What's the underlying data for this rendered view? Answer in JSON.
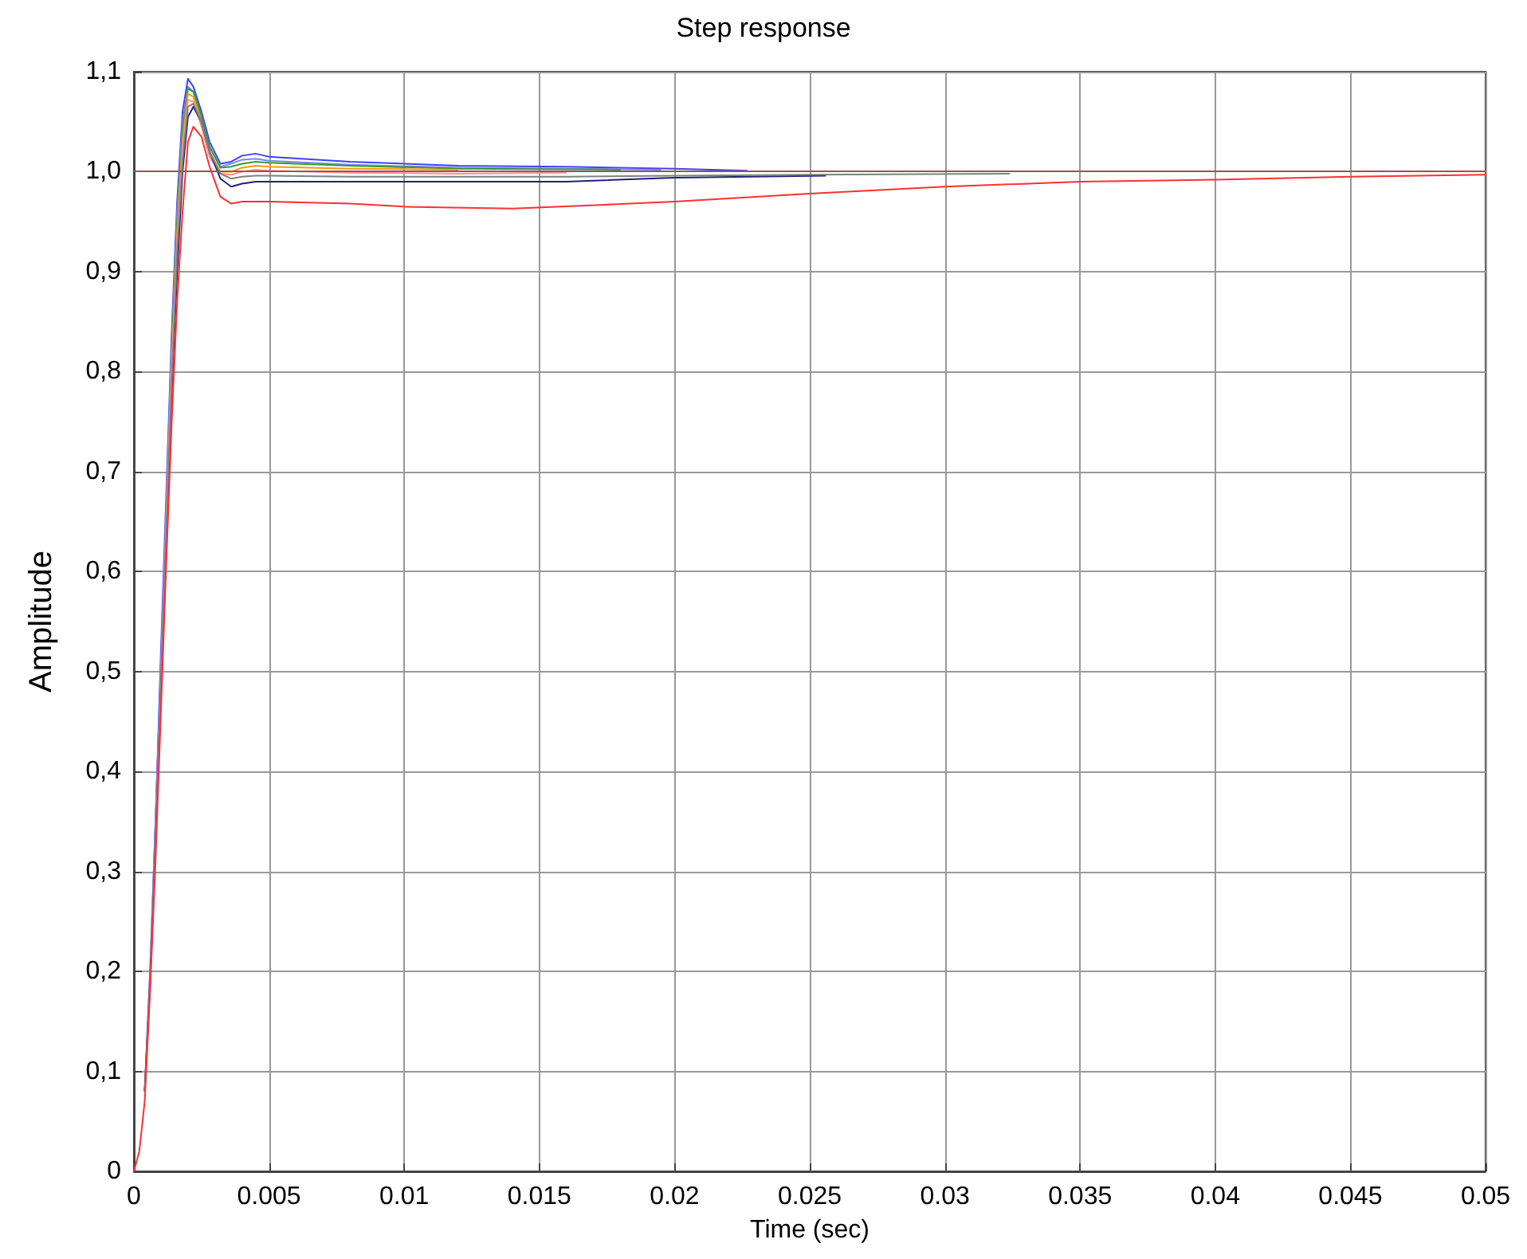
{
  "chart_data": {
    "type": "line",
    "title": "Step response",
    "xlabel": "Time (sec)",
    "ylabel": "Amplitude",
    "grid": true,
    "marker": "none",
    "line_style": "solid",
    "xlim": [
      0,
      0.05
    ],
    "xticks": [
      0,
      0.005,
      0.01,
      0.015,
      0.02,
      0.025,
      0.03,
      0.035,
      0.04,
      0.045,
      0.05
    ],
    "ylim": [
      0,
      1.1
    ],
    "yticks": [
      0,
      {
        "value": 0.1,
        "label": "0,1"
      },
      {
        "value": 0.2,
        "label": "0,2"
      },
      {
        "value": 0.3,
        "label": "0,3"
      },
      {
        "value": 0.4,
        "label": "0,4"
      },
      {
        "value": 0.5,
        "label": "0,5"
      },
      {
        "value": 0.6,
        "label": "0,6"
      },
      {
        "value": 0.7,
        "label": "0,7"
      },
      {
        "value": 0.8,
        "label": "0,8"
      },
      {
        "value": 0.9,
        "label": "0,9"
      },
      {
        "value": 1,
        "label": "1,0"
      },
      {
        "value": 1.1,
        "label": "1,1"
      }
    ],
    "ref_lines": [
      {
        "axis": "y",
        "value": 1,
        "color": "#a05050"
      }
    ],
    "series": [
      {
        "color": "#4040ff",
        "x": [
          0.0004,
          0.0006,
          0.0008,
          0.001,
          0.0012,
          0.0014,
          0.0016,
          0.0018,
          0.002,
          0.0022,
          0.0025,
          0.0028,
          0.0032,
          0.0036,
          0.004,
          0.0045,
          0.005,
          0.008,
          0.012,
          0.016,
          0.02,
          0.0227
        ],
        "values": [
          0.08,
          0.2,
          0.35,
          0.52,
          0.68,
          0.84,
          0.97,
          1.06,
          1.093,
          1.085,
          1.06,
          1.03,
          1.008,
          1.01,
          1.016,
          1.018,
          1.015,
          1.01,
          1.006,
          1.005,
          1.003,
          1.001
        ]
      },
      {
        "color": "#8080ff",
        "x": [
          0.0004,
          0.0006,
          0.0008,
          0.001,
          0.0012,
          0.0014,
          0.0016,
          0.0018,
          0.002,
          0.0022,
          0.0025,
          0.0028,
          0.0032,
          0.0036,
          0.004,
          0.0045,
          0.005,
          0.008,
          0.012,
          0.0195
        ],
        "values": [
          0.08,
          0.2,
          0.35,
          0.51,
          0.67,
          0.83,
          0.96,
          1.05,
          1.085,
          1.08,
          1.055,
          1.025,
          1.005,
          1.008,
          1.012,
          1.013,
          1.011,
          1.007,
          1.004,
          1.002
        ]
      },
      {
        "color": "#30a030",
        "x": [
          0.0014,
          0.0016,
          0.0018,
          0.002,
          0.0022,
          0.0025,
          0.0028,
          0.0032,
          0.0036,
          0.004,
          0.0045,
          0.005,
          0.008,
          0.012,
          0.018
        ],
        "values": [
          0.82,
          0.95,
          1.04,
          1.083,
          1.08,
          1.055,
          1.025,
          1.004,
          1.005,
          1.008,
          1.01,
          1.009,
          1.006,
          1.003,
          1.002
        ]
      },
      {
        "color": "#ff9900",
        "x": [
          0.0012,
          0.0014,
          0.0016,
          0.0018,
          0.002,
          0.0022,
          0.0025,
          0.0028,
          0.0032,
          0.0036,
          0.004,
          0.0045,
          0.005,
          0.008,
          0.012
        ],
        "values": [
          0.65,
          0.81,
          0.94,
          1.03,
          1.078,
          1.075,
          1.05,
          1.02,
          1.0,
          1.0,
          1.004,
          1.006,
          1.005,
          1.003,
          1.002
        ]
      },
      {
        "color": "#ff9090",
        "x": [
          0.0004,
          0.0006,
          0.0008,
          0.001,
          0.0012,
          0.0014,
          0.0016,
          0.0018,
          0.002,
          0.0022,
          0.0025,
          0.0028,
          0.0032,
          0.0036,
          0.004,
          0.0045,
          0.005,
          0.008,
          0.012,
          0.016
        ],
        "values": [
          0.08,
          0.19,
          0.33,
          0.49,
          0.65,
          0.8,
          0.93,
          1.02,
          1.072,
          1.07,
          1.045,
          1.015,
          0.998,
          0.997,
          1.0,
          1.002,
          1.001,
          0.999,
          0.998,
          0.999
        ]
      },
      {
        "color": "#202080",
        "x": [
          0.0004,
          0.0006,
          0.0008,
          0.001,
          0.0012,
          0.0014,
          0.0016,
          0.0018,
          0.002,
          0.0022,
          0.0025,
          0.0028,
          0.0032,
          0.0036,
          0.004,
          0.0045,
          0.005,
          0.008,
          0.012,
          0.016,
          0.02,
          0.0256
        ],
        "values": [
          0.08,
          0.19,
          0.33,
          0.48,
          0.63,
          0.78,
          0.9,
          1.0,
          1.055,
          1.065,
          1.05,
          1.02,
          0.993,
          0.985,
          0.988,
          0.99,
          0.99,
          0.99,
          0.99,
          0.99,
          0.994,
          0.996
        ]
      },
      {
        "color": "#808080",
        "x": [
          0.0004,
          0.0006,
          0.0008,
          0.001,
          0.0012,
          0.0014,
          0.0016,
          0.0018,
          0.002,
          0.0022,
          0.0025,
          0.0028,
          0.0032,
          0.0036,
          0.004,
          0.0045,
          0.005,
          0.008,
          0.012,
          0.016,
          0.02,
          0.025,
          0.0324
        ],
        "values": [
          0.08,
          0.19,
          0.33,
          0.49,
          0.64,
          0.79,
          0.92,
          1.01,
          1.065,
          1.068,
          1.05,
          1.02,
          0.998,
          0.993,
          0.995,
          0.996,
          0.996,
          0.995,
          0.995,
          0.995,
          0.996,
          0.997,
          0.998
        ]
      },
      {
        "color": "#ff3030",
        "x": [
          0,
          0.0002,
          0.0004,
          0.0006,
          0.0008,
          0.001,
          0.0012,
          0.0014,
          0.0016,
          0.0018,
          0.002,
          0.0022,
          0.0025,
          0.0028,
          0.0032,
          0.0036,
          0.004,
          0.005,
          0.008,
          0.01,
          0.014,
          0.02,
          0.025,
          0.03,
          0.035,
          0.04,
          0.045,
          0.05
        ],
        "values": [
          0,
          0.02,
          0.07,
          0.18,
          0.31,
          0.46,
          0.61,
          0.75,
          0.87,
          0.96,
          1.03,
          1.045,
          1.035,
          1.005,
          0.975,
          0.968,
          0.97,
          0.97,
          0.968,
          0.965,
          0.963,
          0.97,
          0.978,
          0.985,
          0.99,
          0.992,
          0.995,
          0.997
        ]
      }
    ]
  }
}
